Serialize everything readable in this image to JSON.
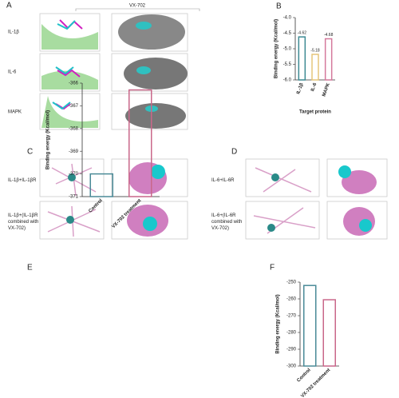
{
  "figure": {
    "panels": [
      "A",
      "B",
      "C",
      "D",
      "E",
      "F"
    ],
    "a_header": "VX-702",
    "a_rows": [
      "IL-1β",
      "IL-6",
      "MAPK"
    ],
    "c_rows": [
      "IL-1β+IL-1βR",
      "IL-1β+(IL-1βR combined with VX-702)"
    ],
    "d_rows": [
      "IL-6+IL-6R",
      "IL-6+(IL-6R combined with VX-702)"
    ]
  },
  "chart_data": [
    {
      "type": "bar",
      "y_label": "Binding energy (Kcal/mol)",
      "x_label": "Target protein",
      "categories": [
        "IL-1β",
        "IL-6",
        "MAPK"
      ],
      "values": [
        -4.62,
        -5.18,
        -4.68
      ],
      "colors": [
        "#3d8a93",
        "#e5c57a",
        "#d4799c"
      ],
      "ylim": [
        -6,
        -4
      ],
      "yticks": [
        {
          "value": -4,
          "label": "-4.0"
        },
        {
          "value": -4.5,
          "label": "-4.5"
        },
        {
          "value": -5,
          "label": "-5.0"
        },
        {
          "value": -5.5,
          "label": "-5.5"
        },
        {
          "value": -6,
          "label": "-6.0"
        }
      ]
    },
    {
      "type": "bar",
      "y_label": "Binding energy (Kcal/mol)",
      "categories": [
        "Control",
        "VX-702 treatment"
      ],
      "values": [
        -370,
        -366.3
      ],
      "colors": [
        "#4a8a97",
        "#c9678a"
      ],
      "ylim": [
        -371,
        -366
      ],
      "yticks": [
        -366,
        -367,
        -368,
        -369,
        -370,
        -371
      ]
    },
    {
      "type": "bar",
      "y_label": "Binding energy (Kcal/mol)",
      "categories": [
        "Control",
        "VX-702 treatment"
      ],
      "values": [
        -252,
        -260.5
      ],
      "colors": [
        "#4a8a97",
        "#c9678a"
      ],
      "ylim": [
        -300,
        -250
      ],
      "yticks": [
        -250,
        -260,
        -270,
        -280,
        -290,
        -300
      ]
    }
  ]
}
